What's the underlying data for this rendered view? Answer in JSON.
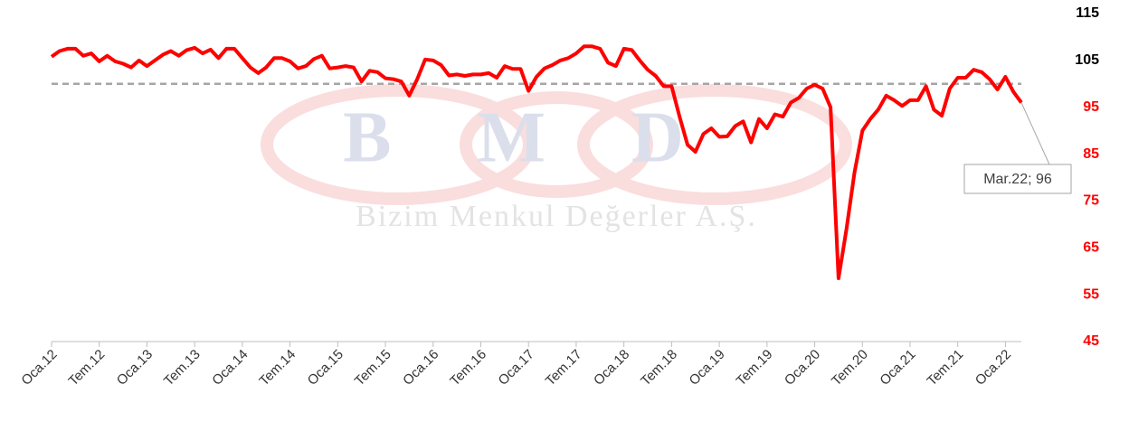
{
  "chart_data": {
    "type": "line",
    "watermark": {
      "logo": "BMD",
      "company": "Bizim Menkul Değerler A.Ş."
    },
    "categories": [
      "Oca.12",
      null,
      null,
      null,
      null,
      null,
      "Tem.12",
      null,
      null,
      null,
      null,
      null,
      "Oca.13",
      null,
      null,
      null,
      null,
      null,
      "Tem.13",
      null,
      null,
      null,
      null,
      null,
      "Oca.14",
      null,
      null,
      null,
      null,
      null,
      "Tem.14",
      null,
      null,
      null,
      null,
      null,
      "Oca.15",
      null,
      null,
      null,
      null,
      null,
      "Tem.15",
      null,
      null,
      null,
      null,
      null,
      "Oca.16",
      null,
      null,
      null,
      null,
      null,
      "Tem.16",
      null,
      null,
      null,
      null,
      null,
      "Oca.17",
      null,
      null,
      null,
      null,
      null,
      "Tem.17",
      null,
      null,
      null,
      null,
      null,
      "Oca.18",
      null,
      null,
      null,
      null,
      null,
      "Tem.18",
      null,
      null,
      null,
      null,
      null,
      "Oca.19",
      null,
      null,
      null,
      null,
      null,
      "Tem.19",
      null,
      null,
      null,
      null,
      null,
      "Oca.20",
      null,
      null,
      null,
      null,
      null,
      "Tem.20",
      null,
      null,
      null,
      null,
      null,
      "Oca.21",
      null,
      null,
      null,
      null,
      null,
      "Tem.21",
      null,
      null,
      null,
      null,
      null,
      "Oca.22",
      null,
      null
    ],
    "values": [
      105.8,
      107,
      107.5,
      107.5,
      106,
      106.5,
      104.8,
      106,
      104.8,
      104.3,
      103.5,
      105,
      103.8,
      105,
      106.2,
      107,
      106,
      107.2,
      107.7,
      106.5,
      107.3,
      105.5,
      107.5,
      107.5,
      105.5,
      103.5,
      102.3,
      103.5,
      105.5,
      105.5,
      104.8,
      103.3,
      103.8,
      105.3,
      106,
      103.3,
      103.5,
      103.8,
      103.5,
      100.5,
      102.8,
      102.5,
      101.2,
      101,
      100.5,
      97.5,
      101,
      105.2,
      105,
      104,
      101.8,
      102,
      101.7,
      102,
      102,
      102.3,
      101.3,
      103.8,
      103.2,
      103.2,
      98.5,
      101.5,
      103.3,
      104,
      105,
      105.5,
      106.5,
      108,
      108,
      107.5,
      104.5,
      103.8,
      107.5,
      107.2,
      105,
      103,
      101.7,
      99.5,
      99.5,
      93,
      87,
      85.5,
      89.3,
      90.5,
      88.7,
      88.8,
      91,
      92,
      87.5,
      92.5,
      90.5,
      93.5,
      93,
      96,
      97,
      99,
      99.8,
      99,
      95,
      58.5,
      69,
      81,
      90,
      92.5,
      94.5,
      97.5,
      96.5,
      95.3,
      96.5,
      96.5,
      99.5,
      94.5,
      93.2,
      99,
      101.3,
      101.3,
      103,
      102.5,
      101,
      98.8,
      101.5,
      98.3,
      96
    ],
    "color": "#ff0000",
    "reference_line": 100,
    "annotation": "Mar.22; 96",
    "ylim": [
      45,
      115
    ],
    "yticks": [
      45,
      55,
      65,
      75,
      85,
      95,
      105,
      115
    ],
    "ytick_label_colors": [
      "#ff0000",
      "#ff0000",
      "#ff0000",
      "#ff0000",
      "#ff0000",
      "#ff0000",
      "#000000",
      "#000000"
    ]
  }
}
